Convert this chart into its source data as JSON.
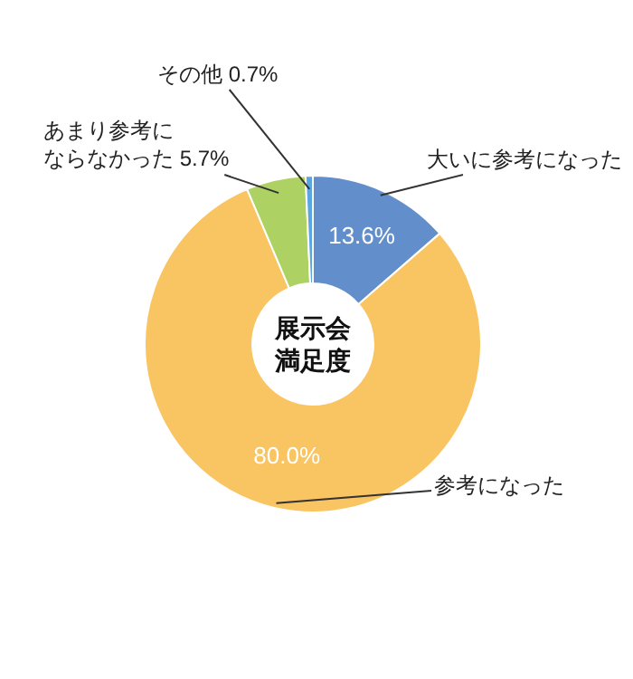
{
  "chart_data": {
    "type": "donut",
    "title": "展示会満足度",
    "categories": [
      "大いに参考になった",
      "参考になった",
      "あまり参考にならなかった",
      "その他"
    ],
    "values": [
      13.6,
      80.0,
      5.7,
      0.7
    ],
    "value_labels": [
      "13.6%",
      "80.0%",
      "5.7%",
      "0.7%"
    ],
    "colors": [
      "#628fcb",
      "#f9c462",
      "#aed163",
      "#5aa6e0"
    ],
    "legend": false
  }
}
